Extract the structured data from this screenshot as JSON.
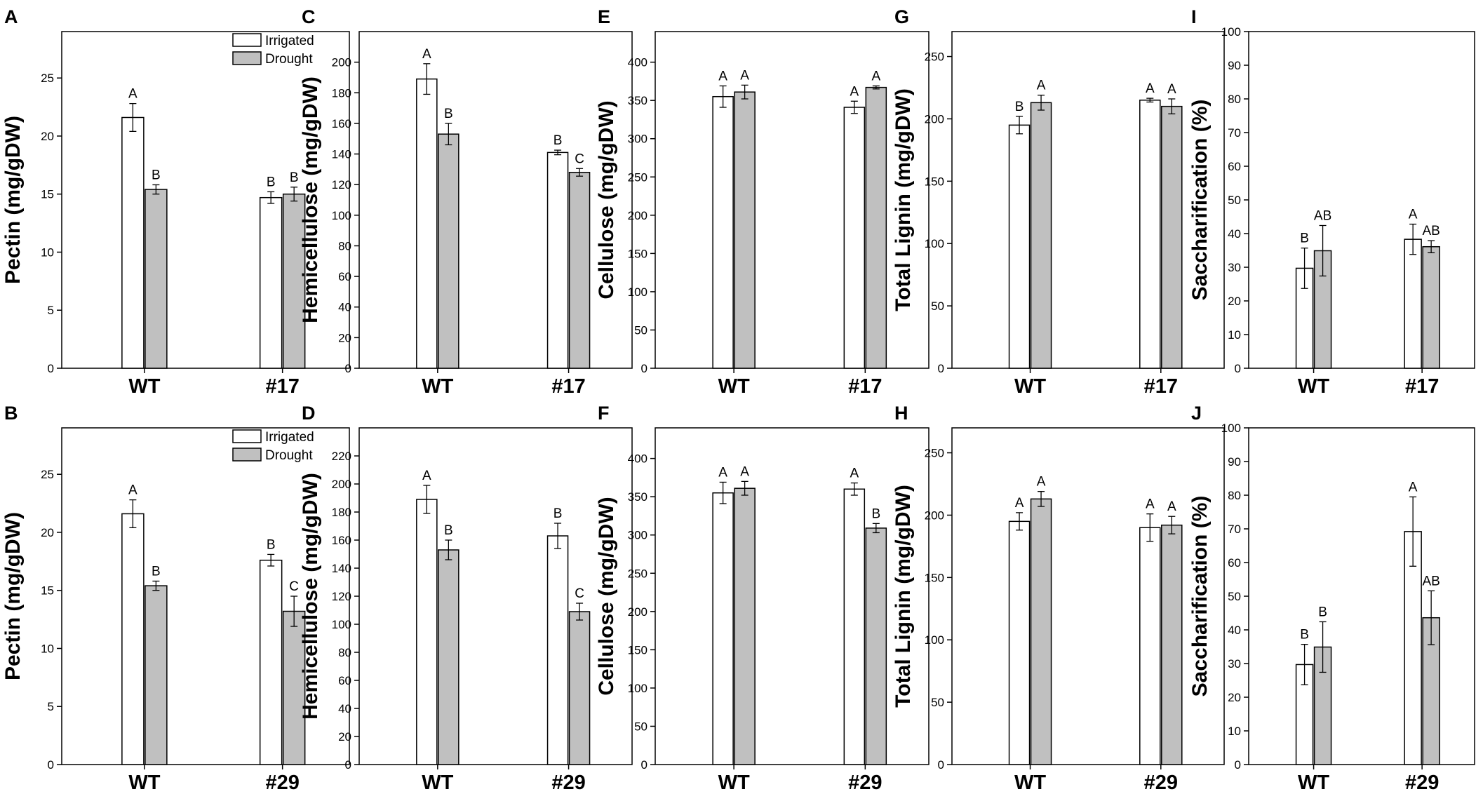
{
  "series_styles": {
    "Irrigated": {
      "fill": "#ffffff",
      "stroke": "#000000"
    },
    "Drought": {
      "fill": "#c0c0c0",
      "stroke": "#000000"
    }
  },
  "chart_data": [
    {
      "panel": "A",
      "type": "bar",
      "ylabel": "Pectin (mg/gDW)",
      "categories": [
        "WT",
        "#17"
      ],
      "ylim": [
        0,
        29
      ],
      "yticks": [
        0,
        5,
        10,
        15,
        20,
        25
      ],
      "series": [
        {
          "name": "Irrigated",
          "values": [
            21.6,
            14.7
          ],
          "errors": [
            1.2,
            0.5
          ],
          "labels": [
            "A",
            "B"
          ]
        },
        {
          "name": "Drought",
          "values": [
            15.4,
            15.0
          ],
          "errors": [
            0.4,
            0.6
          ],
          "labels": [
            "B",
            "B"
          ]
        }
      ],
      "legend": [
        "Irrigated",
        "Drought"
      ]
    },
    {
      "panel": "B",
      "type": "bar",
      "ylabel": "Pectin (mg/gDW)",
      "categories": [
        "WT",
        "#29"
      ],
      "ylim": [
        0,
        29
      ],
      "yticks": [
        0,
        5,
        10,
        15,
        20,
        25
      ],
      "series": [
        {
          "name": "Irrigated",
          "values": [
            21.6,
            17.6
          ],
          "errors": [
            1.2,
            0.5
          ],
          "labels": [
            "A",
            "B"
          ]
        },
        {
          "name": "Drought",
          "values": [
            15.4,
            13.2
          ],
          "errors": [
            0.4,
            1.3
          ],
          "labels": [
            "B",
            "C"
          ]
        }
      ],
      "legend": [
        "Irrigated",
        "Drought"
      ]
    },
    {
      "panel": "C",
      "type": "bar",
      "ylabel": "Hemicellulose (mg/gDW)",
      "categories": [
        "WT",
        "#17"
      ],
      "ylim": [
        0,
        220
      ],
      "yticks": [
        0,
        20,
        40,
        60,
        80,
        100,
        120,
        140,
        160,
        180,
        200
      ],
      "series": [
        {
          "name": "Irrigated",
          "values": [
            189,
            141
          ],
          "errors": [
            10,
            1.5
          ],
          "labels": [
            "A",
            "B"
          ]
        },
        {
          "name": "Drought",
          "values": [
            153,
            128
          ],
          "errors": [
            7,
            2.5
          ],
          "labels": [
            "B",
            "C"
          ]
        }
      ]
    },
    {
      "panel": "D",
      "type": "bar",
      "ylabel": "Hemicellulose (mg/gDW)",
      "categories": [
        "WT",
        "#29"
      ],
      "ylim": [
        0,
        240
      ],
      "yticks": [
        0,
        20,
        40,
        60,
        80,
        100,
        120,
        140,
        160,
        180,
        200,
        220
      ],
      "series": [
        {
          "name": "Irrigated",
          "values": [
            189,
            163
          ],
          "errors": [
            10,
            9
          ],
          "labels": [
            "A",
            "B"
          ]
        },
        {
          "name": "Drought",
          "values": [
            153,
            109
          ],
          "errors": [
            7,
            6
          ],
          "labels": [
            "B",
            "C"
          ]
        }
      ]
    },
    {
      "panel": "E",
      "type": "bar",
      "ylabel": "Cellulose (mg/gDW)",
      "categories": [
        "WT",
        "#17"
      ],
      "ylim": [
        0,
        440
      ],
      "yticks": [
        0,
        50,
        100,
        150,
        200,
        250,
        300,
        350,
        400
      ],
      "series": [
        {
          "name": "Irrigated",
          "values": [
            355,
            341
          ],
          "errors": [
            14,
            8
          ],
          "labels": [
            "A",
            "A"
          ]
        },
        {
          "name": "Drought",
          "values": [
            361,
            367
          ],
          "errors": [
            9,
            2
          ],
          "labels": [
            "A",
            "A"
          ]
        }
      ]
    },
    {
      "panel": "F",
      "type": "bar",
      "ylabel": "Cellulose (mg/gDW)",
      "categories": [
        "WT",
        "#29"
      ],
      "ylim": [
        0,
        440
      ],
      "yticks": [
        0,
        50,
        100,
        150,
        200,
        250,
        300,
        350,
        400
      ],
      "series": [
        {
          "name": "Irrigated",
          "values": [
            355,
            360
          ],
          "errors": [
            14,
            8
          ],
          "labels": [
            "A",
            "A"
          ]
        },
        {
          "name": "Drought",
          "values": [
            361,
            309
          ],
          "errors": [
            9,
            6
          ],
          "labels": [
            "A",
            "B"
          ]
        }
      ]
    },
    {
      "panel": "G",
      "type": "bar",
      "ylabel": "Total Lignin (mg/gDW)",
      "categories": [
        "WT",
        "#17"
      ],
      "ylim": [
        0,
        270
      ],
      "yticks": [
        0,
        50,
        100,
        150,
        200,
        250
      ],
      "series": [
        {
          "name": "Irrigated",
          "values": [
            195,
            215
          ],
          "errors": [
            7,
            1.5
          ],
          "labels": [
            "B",
            "A"
          ]
        },
        {
          "name": "Drought",
          "values": [
            213,
            210
          ],
          "errors": [
            6,
            6
          ],
          "labels": [
            "A",
            "A"
          ]
        }
      ]
    },
    {
      "panel": "H",
      "type": "bar",
      "ylabel": "Total Lignin (mg/gDW)",
      "categories": [
        "WT",
        "#29"
      ],
      "ylim": [
        0,
        270
      ],
      "yticks": [
        0,
        50,
        100,
        150,
        200,
        250
      ],
      "series": [
        {
          "name": "Irrigated",
          "values": [
            195,
            190
          ],
          "errors": [
            7,
            11
          ],
          "labels": [
            "A",
            "A"
          ]
        },
        {
          "name": "Drought",
          "values": [
            213,
            192
          ],
          "errors": [
            6,
            7
          ],
          "labels": [
            "A",
            "A"
          ]
        }
      ]
    },
    {
      "panel": "I",
      "type": "bar",
      "ylabel": "Saccharification (%)",
      "categories": [
        "WT",
        "#17"
      ],
      "ylim": [
        0,
        100
      ],
      "yticks": [
        0,
        10,
        20,
        30,
        40,
        50,
        60,
        70,
        80,
        90,
        100
      ],
      "series": [
        {
          "name": "Irrigated",
          "values": [
            29.7,
            38.3
          ],
          "errors": [
            6,
            4.5
          ],
          "labels": [
            "B",
            "A"
          ]
        },
        {
          "name": "Drought",
          "values": [
            34.9,
            36.1
          ],
          "errors": [
            7.5,
            1.8
          ],
          "labels": [
            "AB",
            "AB"
          ]
        }
      ]
    },
    {
      "panel": "J",
      "type": "bar",
      "ylabel": "Saccharification (%)",
      "categories": [
        "WT",
        "#29"
      ],
      "ylim": [
        0,
        100
      ],
      "yticks": [
        0,
        10,
        20,
        30,
        40,
        50,
        60,
        70,
        80,
        90,
        100
      ],
      "series": [
        {
          "name": "Irrigated",
          "values": [
            29.7,
            69.2
          ],
          "errors": [
            6,
            10.3
          ],
          "labels": [
            "B",
            "A"
          ]
        },
        {
          "name": "Drought",
          "values": [
            34.9,
            43.6
          ],
          "errors": [
            7.5,
            8
          ],
          "labels": [
            "B",
            "AB"
          ]
        }
      ]
    }
  ]
}
